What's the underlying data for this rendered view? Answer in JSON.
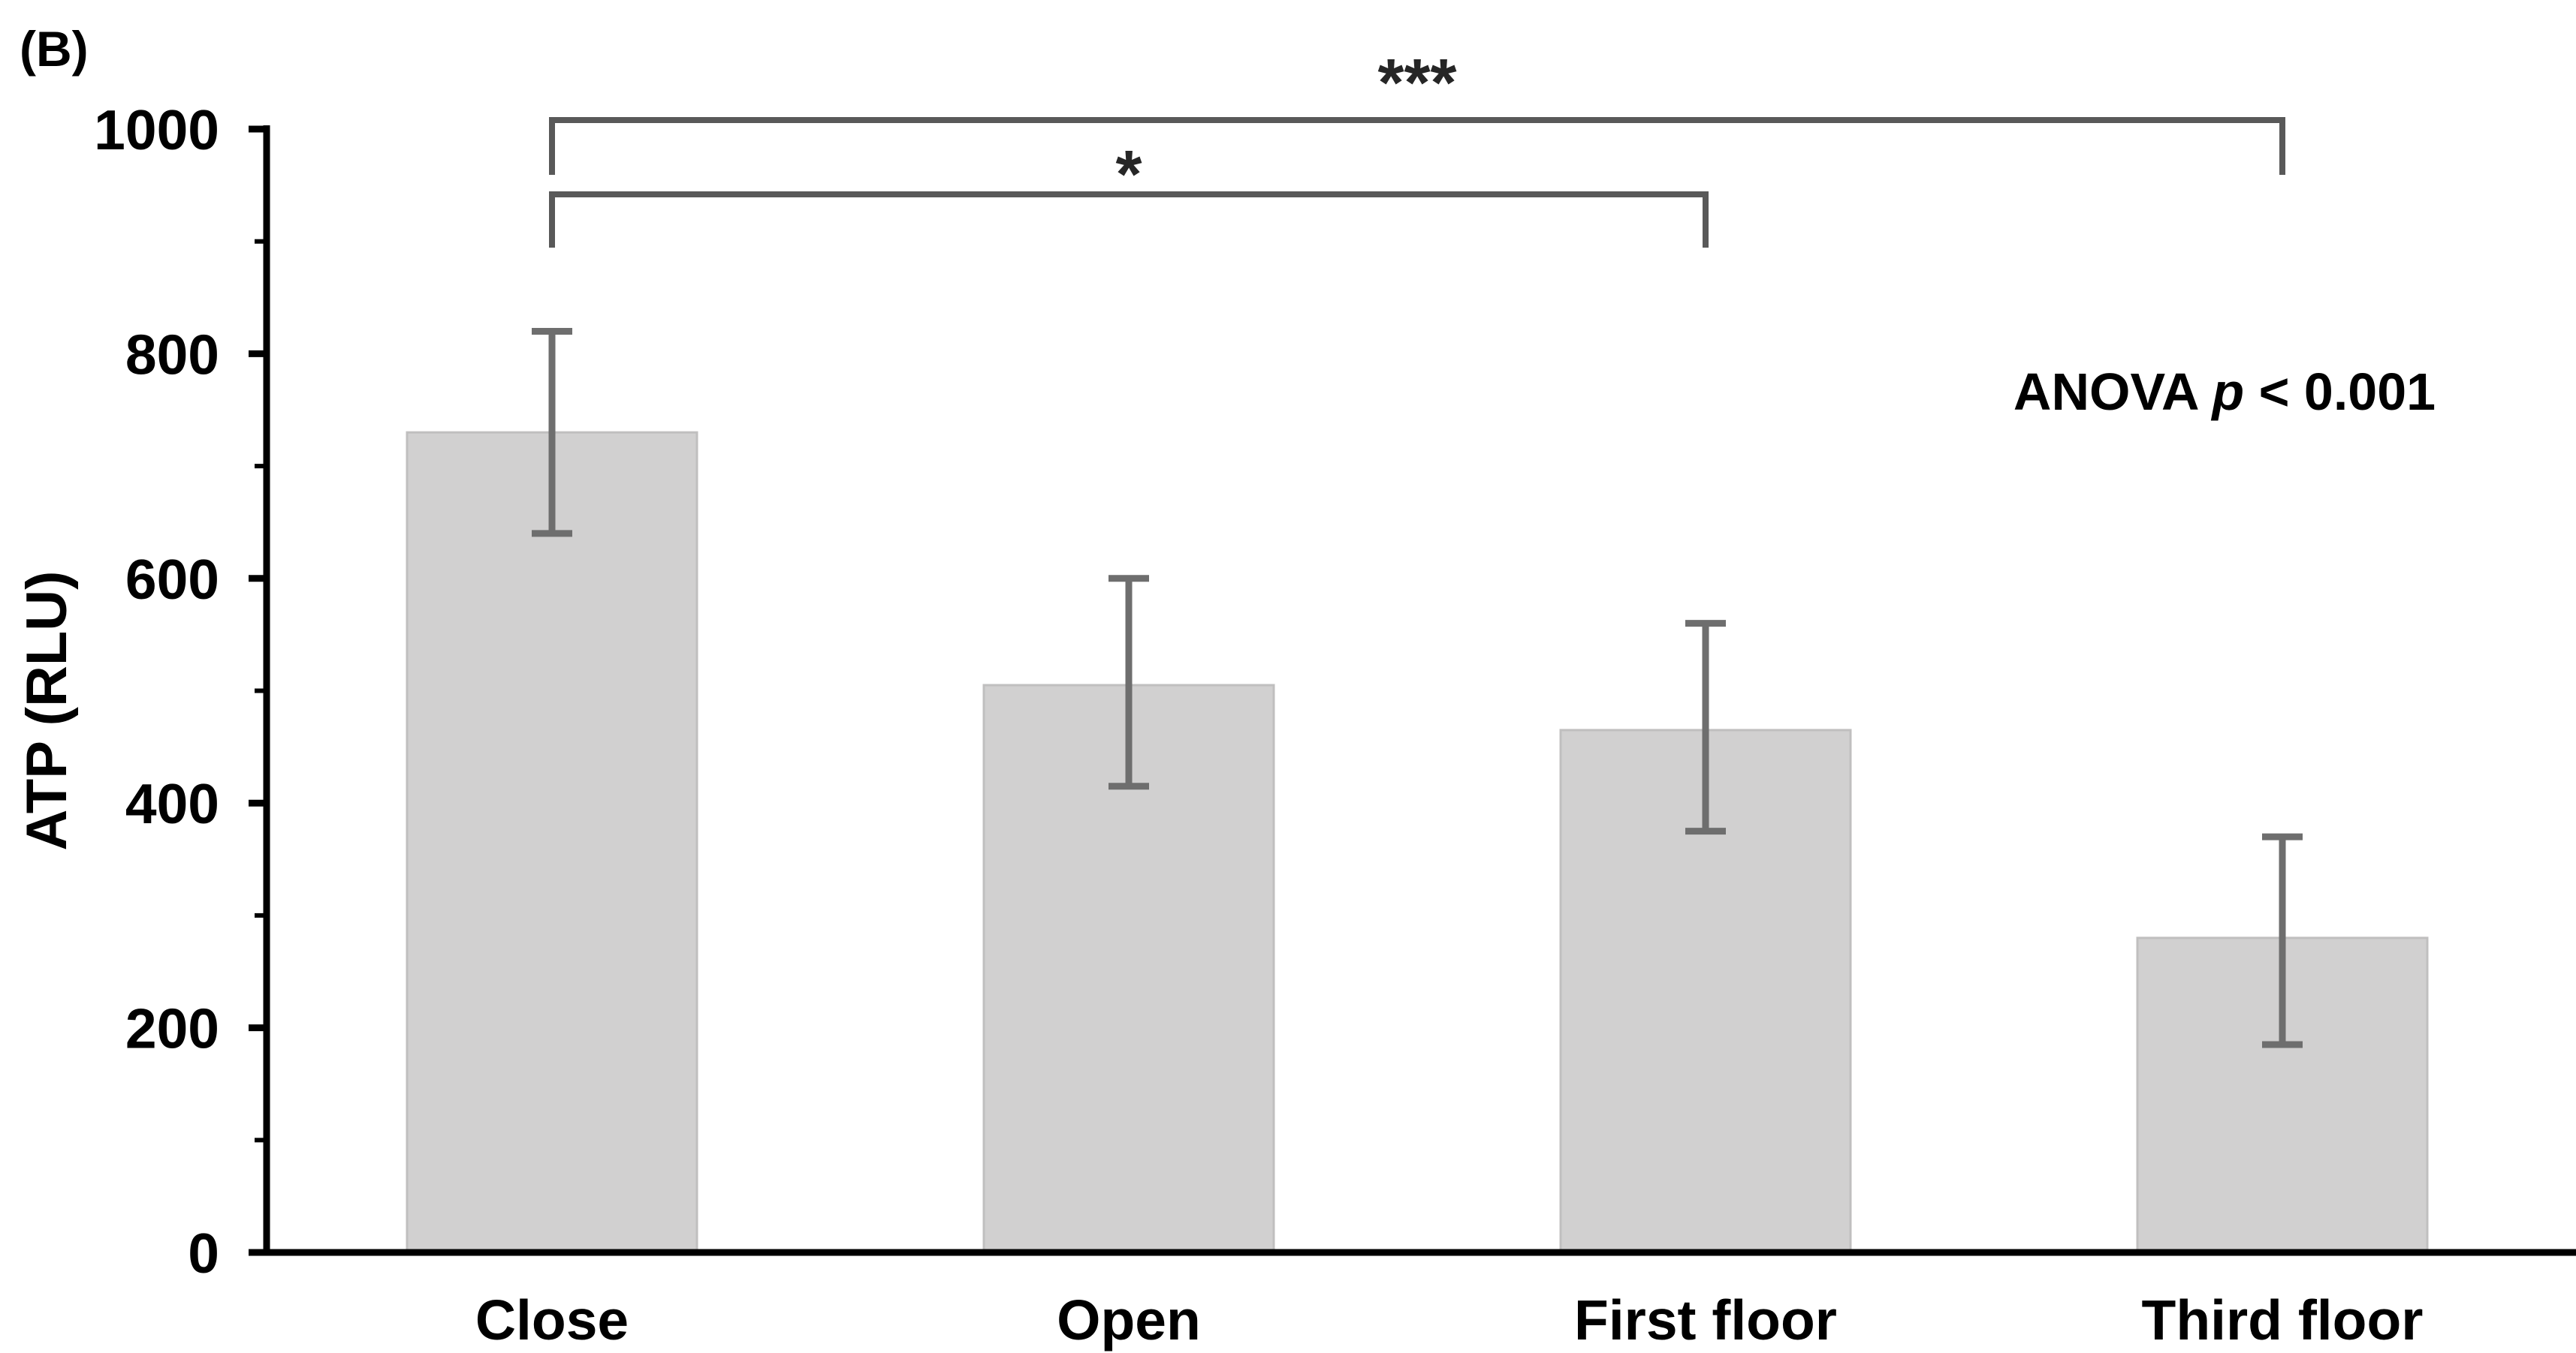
{
  "panel_label": "(B)",
  "annotation": {
    "prefix": "ANOVA ",
    "p": "p",
    "suffix": " < 0.001"
  },
  "colors": {
    "bar_fill": "#d1d0d0",
    "bar_border": "#c0bfbf",
    "error_bar": "#6e6e6e",
    "bracket": "#595959",
    "axis": "#000000"
  },
  "chart_data": {
    "type": "bar",
    "title": "",
    "xlabel": "",
    "ylabel": "ATP (RLU)",
    "categories": [
      "Close",
      "Open",
      "First floor",
      "Third floor"
    ],
    "values": [
      730,
      505,
      465,
      280
    ],
    "error_bars": {
      "upper": [
        820,
        600,
        560,
        370
      ],
      "lower": [
        640,
        415,
        375,
        185
      ]
    },
    "y_axis": {
      "min": 0,
      "max": 1000,
      "major_step": 200,
      "minor_step": 100,
      "tick_labels": [
        "0",
        "200",
        "400",
        "600",
        "800",
        "1000"
      ]
    },
    "grid": false,
    "legend": false,
    "annotation_text": "ANOVA p < 0.001",
    "significance": [
      {
        "label": "***",
        "from": "Close",
        "to": "Third floor",
        "from_index": 0,
        "to_index": 3
      },
      {
        "label": "*",
        "from": "Close",
        "to": "First floor",
        "from_index": 0,
        "to_index": 2
      }
    ]
  }
}
